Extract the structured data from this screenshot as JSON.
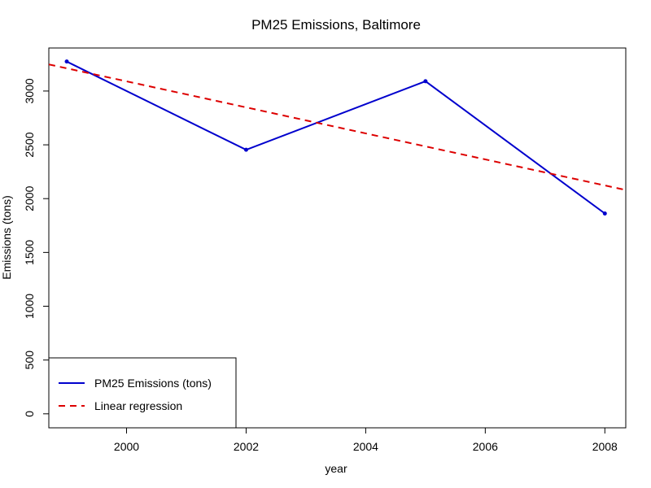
{
  "chart_data": {
    "type": "line",
    "title": "PM25 Emissions, Baltimore",
    "xlabel": "year",
    "ylabel": "Emissions (tons)",
    "xlim": [
      1998.7,
      2008.35
    ],
    "ylim": [
      -130,
      3400
    ],
    "x_ticks": [
      2000,
      2002,
      2004,
      2006,
      2008
    ],
    "y_ticks": [
      0,
      500,
      1000,
      1500,
      2000,
      2500,
      3000
    ],
    "grid": false,
    "legend_position": "bottom-left",
    "series": [
      {
        "name": "PM25 Emissions (tons)",
        "style": "solid",
        "color": "#0000CD",
        "x": [
          1999,
          2002,
          2005,
          2008
        ],
        "y": [
          3274,
          2454,
          3091,
          1862
        ]
      },
      {
        "name": "Linear regression",
        "style": "dashed",
        "color": "#DD0000",
        "x": [
          1998.7,
          2008.35
        ],
        "y": [
          3247,
          2080
        ]
      }
    ]
  }
}
